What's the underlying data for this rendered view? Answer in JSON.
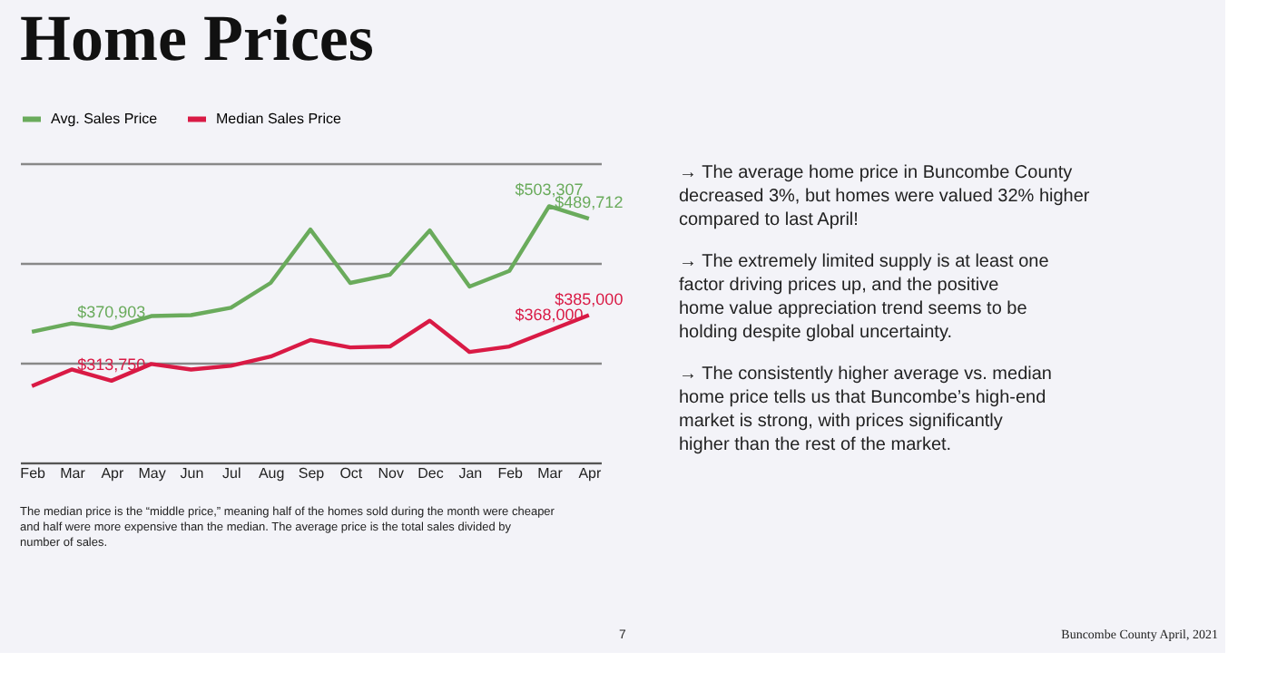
{
  "chart_data": {
    "type": "line",
    "title": "Home Prices",
    "categories": [
      "Feb",
      "Mar",
      "Apr",
      "May",
      "Jun",
      "Jul",
      "Aug",
      "Sep",
      "Oct",
      "Nov",
      "Dec",
      "Jan",
      "Feb",
      "Mar",
      "Apr"
    ],
    "series": [
      {
        "name": "Avg. Sales Price",
        "color": "#6aab5c",
        "values": [
          367000,
          376000,
          370903,
          384000,
          385000,
          393000,
          420000,
          478000,
          420000,
          429000,
          477000,
          416000,
          433000,
          503307,
          489712
        ],
        "value_labels": [
          null,
          null,
          "$370,903",
          null,
          null,
          null,
          null,
          null,
          null,
          null,
          null,
          null,
          null,
          "$503,307",
          "$489,712"
        ]
      },
      {
        "name": "Median Sales Price",
        "color": "#d91a45",
        "values": [
          308000,
          326000,
          313750,
          332000,
          326000,
          330000,
          340000,
          358000,
          350000,
          351000,
          379000,
          345000,
          351000,
          368000,
          385000
        ],
        "value_labels": [
          null,
          null,
          "$313,750",
          null,
          null,
          null,
          null,
          null,
          null,
          null,
          null,
          null,
          null,
          "$368,000",
          "$385,000"
        ]
      }
    ],
    "ylim": [
      225000,
      550000
    ],
    "yticks": [
      {
        "value": 225000,
        "label": null
      },
      {
        "value": 333000,
        "label": null
      },
      {
        "value": 442000,
        "label": null
      },
      {
        "value": 550000,
        "label": null
      }
    ],
    "tick_labels": "x",
    "grid": "y",
    "legend": "top",
    "marker": "none",
    "line_style": "solid",
    "annotations": [
      "The median price is the “middle price,” meaning half of the homes sold during the month were cheaper and half were more expensive than the median. The average price  is the total sales divided by number of sales.",
      "→ The average home price in Buncombe County decreased 3%, but homes were valued 32% higher compared to last April!",
      "→ The extremely limited supply is at least one factor driving prices up, and the positive home value appreciation trend seems to be holding  despite global uncertainty.",
      "→ The consistently higher average vs. median home price tells us that Buncombe’s high-end market is strong, with prices significantly higher than the rest of the market.",
      "7",
      "Buncombe County April, 2021"
    ]
  }
}
